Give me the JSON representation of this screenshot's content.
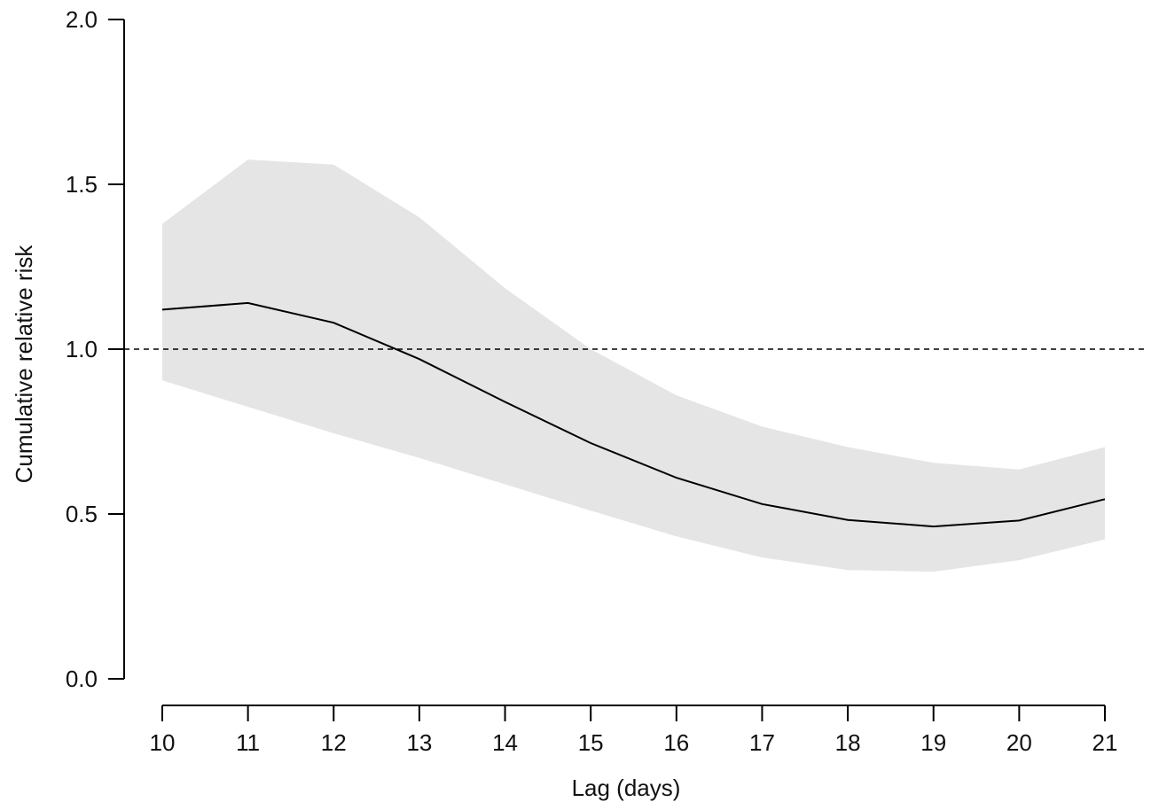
{
  "chart_data": {
    "type": "line",
    "title": "",
    "xlabel": "Lag (days)",
    "ylabel": "Cumulative relative risk",
    "x": [
      10,
      11,
      12,
      13,
      14,
      15,
      16,
      17,
      18,
      19,
      20,
      21
    ],
    "series": [
      {
        "values": [
          1.12,
          1.14,
          1.08,
          0.97,
          0.84,
          0.715,
          0.61,
          0.53,
          0.482,
          0.462,
          0.48,
          0.545
        ],
        "lower": [
          0.905,
          0.825,
          0.745,
          0.67,
          0.59,
          0.51,
          0.432,
          0.368,
          0.33,
          0.325,
          0.36,
          0.423
        ],
        "upper": [
          1.38,
          1.575,
          1.56,
          1.4,
          1.185,
          1.0,
          0.86,
          0.765,
          0.703,
          0.655,
          0.635,
          0.703
        ]
      }
    ],
    "reference_line": 1.0,
    "xlim": [
      10,
      21
    ],
    "ylim": [
      0,
      2
    ],
    "xticks": [
      "10",
      "11",
      "12",
      "13",
      "14",
      "15",
      "16",
      "17",
      "18",
      "19",
      "20",
      "21"
    ],
    "yticks": [
      "0.0",
      "0.5",
      "1.0",
      "1.5",
      "2.0"
    ],
    "colors": {
      "line": "#000000",
      "band": "#e5e5e5",
      "reference": "#000000"
    },
    "grid": false
  }
}
